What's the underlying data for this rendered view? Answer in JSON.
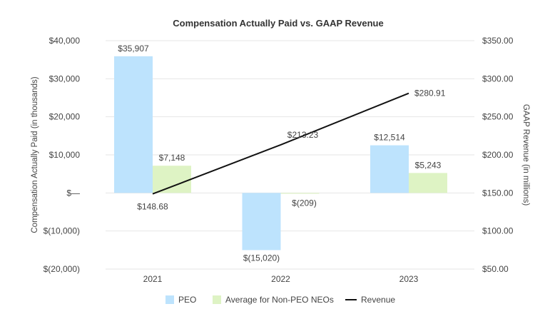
{
  "chart_data": {
    "type": "bar",
    "title": "Compensation Actually Paid vs. GAAP Revenue",
    "categories": [
      "2021",
      "2022",
      "2023"
    ],
    "ylabel": "Compensation Actually Paid (in thousands)",
    "y2label": "GAAP Revenue (in millions)",
    "ylim": [
      -20000,
      40000
    ],
    "y2lim": [
      50,
      350
    ],
    "yticks": [
      "$40,000",
      "$30,000",
      "$20,000",
      "$10,000",
      "$—",
      "$(10,000)",
      "$(20,000)"
    ],
    "y2ticks": [
      "$350.00",
      "$300.00",
      "$250.00",
      "$200.00",
      "$150.00",
      "$100.00",
      "$50.00"
    ],
    "grid": true,
    "legend_position": "bottom",
    "series": [
      {
        "name": "PEO",
        "type": "bar",
        "color": "#bde3fd",
        "axis": "left",
        "values": [
          35907,
          -15020,
          12514
        ],
        "labels": [
          "$35,907",
          "$(15,020)",
          "$12,514"
        ]
      },
      {
        "name": "Average for Non-PEO NEOs",
        "type": "bar",
        "color": "#def3c4",
        "axis": "left",
        "values": [
          7148,
          -209,
          5243
        ],
        "labels": [
          "$7,148",
          "$(209)",
          "$5,243"
        ]
      },
      {
        "name": "Revenue",
        "type": "line",
        "color": "#111111",
        "axis": "right",
        "values": [
          148.68,
          213.23,
          280.91
        ],
        "labels": [
          "$148.68",
          "$213.23",
          "$280.91"
        ]
      }
    ]
  }
}
